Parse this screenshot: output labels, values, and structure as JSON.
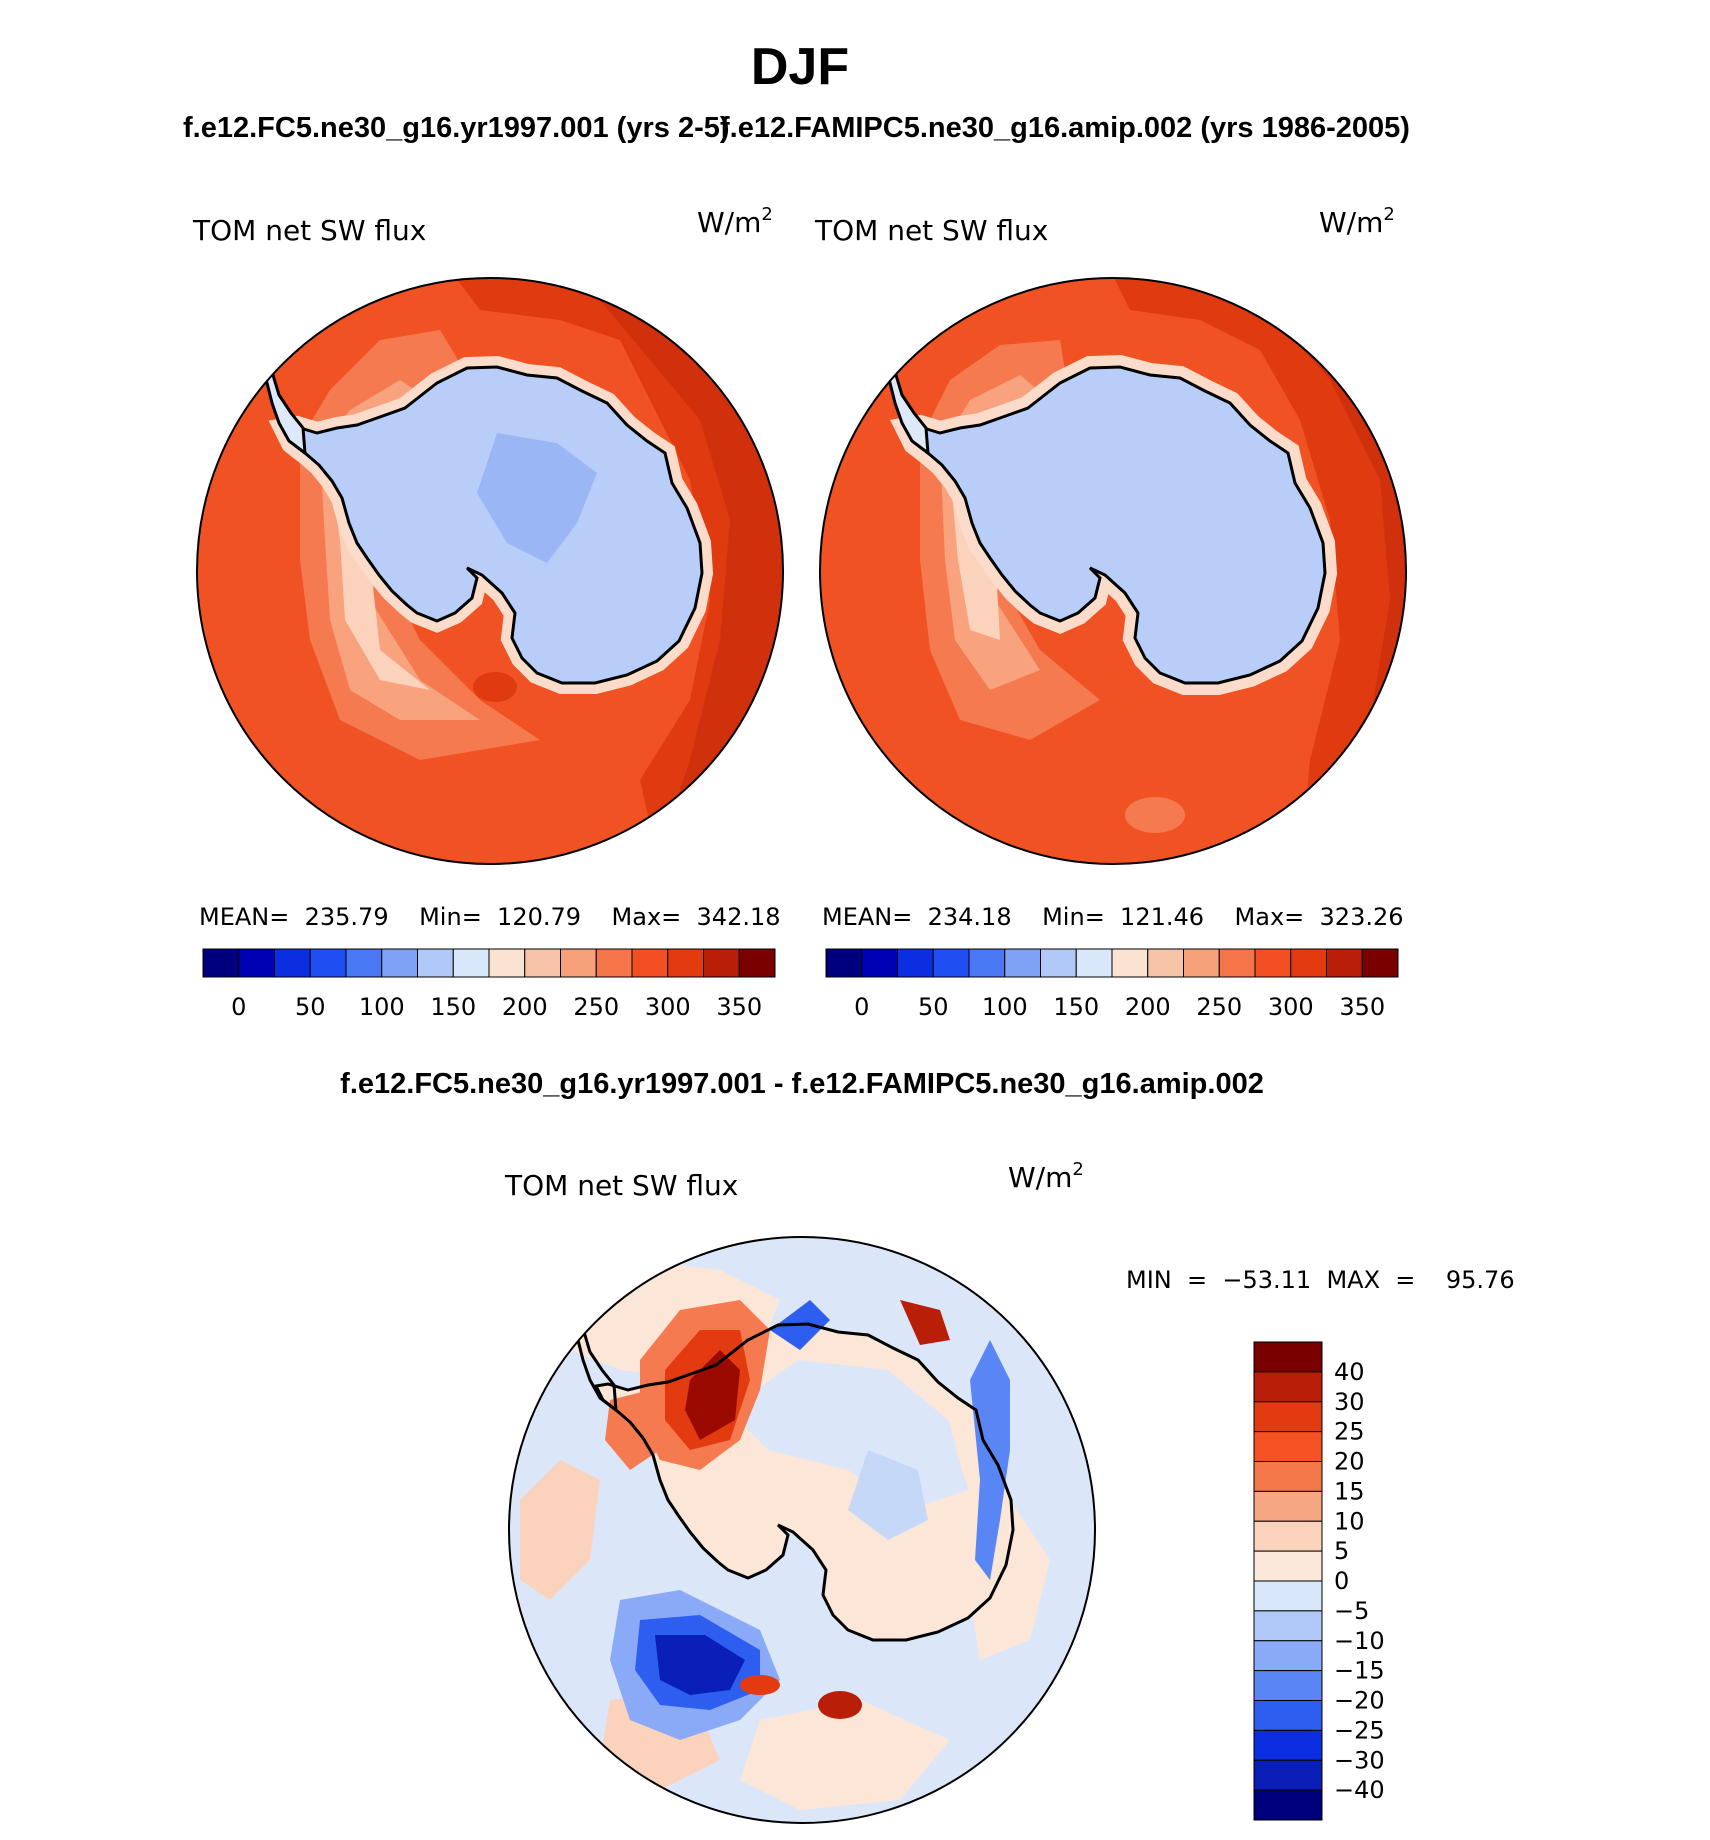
{
  "title": "DJF",
  "subtitle_left": "f.e12.FC5.ne30_g16.yr1997.001 (yrs 2-5)",
  "subtitle_right": "f.e12.FAMIPC5.ne30_g16.amip.002 (yrs 1986-2005)",
  "diff_title": "f.e12.FC5.ne30_g16.yr1997.001 - f.e12.FAMIPC5.ne30_g16.amip.002",
  "panels": [
    {
      "variable": "TOM net SW flux",
      "units_base": "W/m",
      "units_exp": "2",
      "stats": "MEAN=  235.79    Min=  120.79    Max=  342.18"
    },
    {
      "variable": "TOM net SW flux",
      "units_base": "W/m",
      "units_exp": "2",
      "stats": "MEAN=  234.18    Min=  121.46    Max=  323.26"
    }
  ],
  "diff_panel": {
    "variable": "TOM net SW flux",
    "units_base": "W/m",
    "units_exp": "2",
    "stats": "MIN  =  −53.11  MAX  =    95.76"
  },
  "colorbar_abs": {
    "colors": [
      "#00007f",
      "#0000b4",
      "#0b2fe0",
      "#1f4ff2",
      "#4a78f5",
      "#7fa2f7",
      "#b0c9f8",
      "#d8e8fa",
      "#fbe3d2",
      "#f8c4a8",
      "#f6a17a",
      "#f5754a",
      "#f25022",
      "#e33a10",
      "#b81e08",
      "#7a0000"
    ],
    "labels": [
      "0",
      "50",
      "100",
      "150",
      "200",
      "250",
      "300",
      "350"
    ]
  },
  "colorbar_diff": {
    "colors": [
      "#7a0000",
      "#b81e08",
      "#e33a10",
      "#f55224",
      "#f5784a",
      "#f7a682",
      "#fbd3bc",
      "#fce8da",
      "#d8e8fa",
      "#b0c9f8",
      "#8aa9f6",
      "#5a85f4",
      "#2e5ef0",
      "#0b2fe0",
      "#0a1eb8",
      "#00007f"
    ],
    "labels": [
      "40",
      "30",
      "25",
      "20",
      "15",
      "10",
      "5",
      "0",
      "−5",
      "−10",
      "−15",
      "−20",
      "−25",
      "−30",
      "−40"
    ]
  },
  "colors": {
    "ocean_abs": "#f05223",
    "ocean_abs_dark": "#e03a10",
    "ocean_abs_darker": "#c22a0a",
    "ice_zone_light": "#f8bca0",
    "ice_zone_pale": "#fbdccb",
    "ice_edge": "#dde8f8",
    "antarctica": "#b8cef8",
    "antarctica_inner": "#9ab6f5",
    "diff_bg": "#dbe7f8",
    "diff_land": "#fce6d8",
    "diff_hot": "#9a0a00",
    "diff_cold": "#1437d8"
  }
}
